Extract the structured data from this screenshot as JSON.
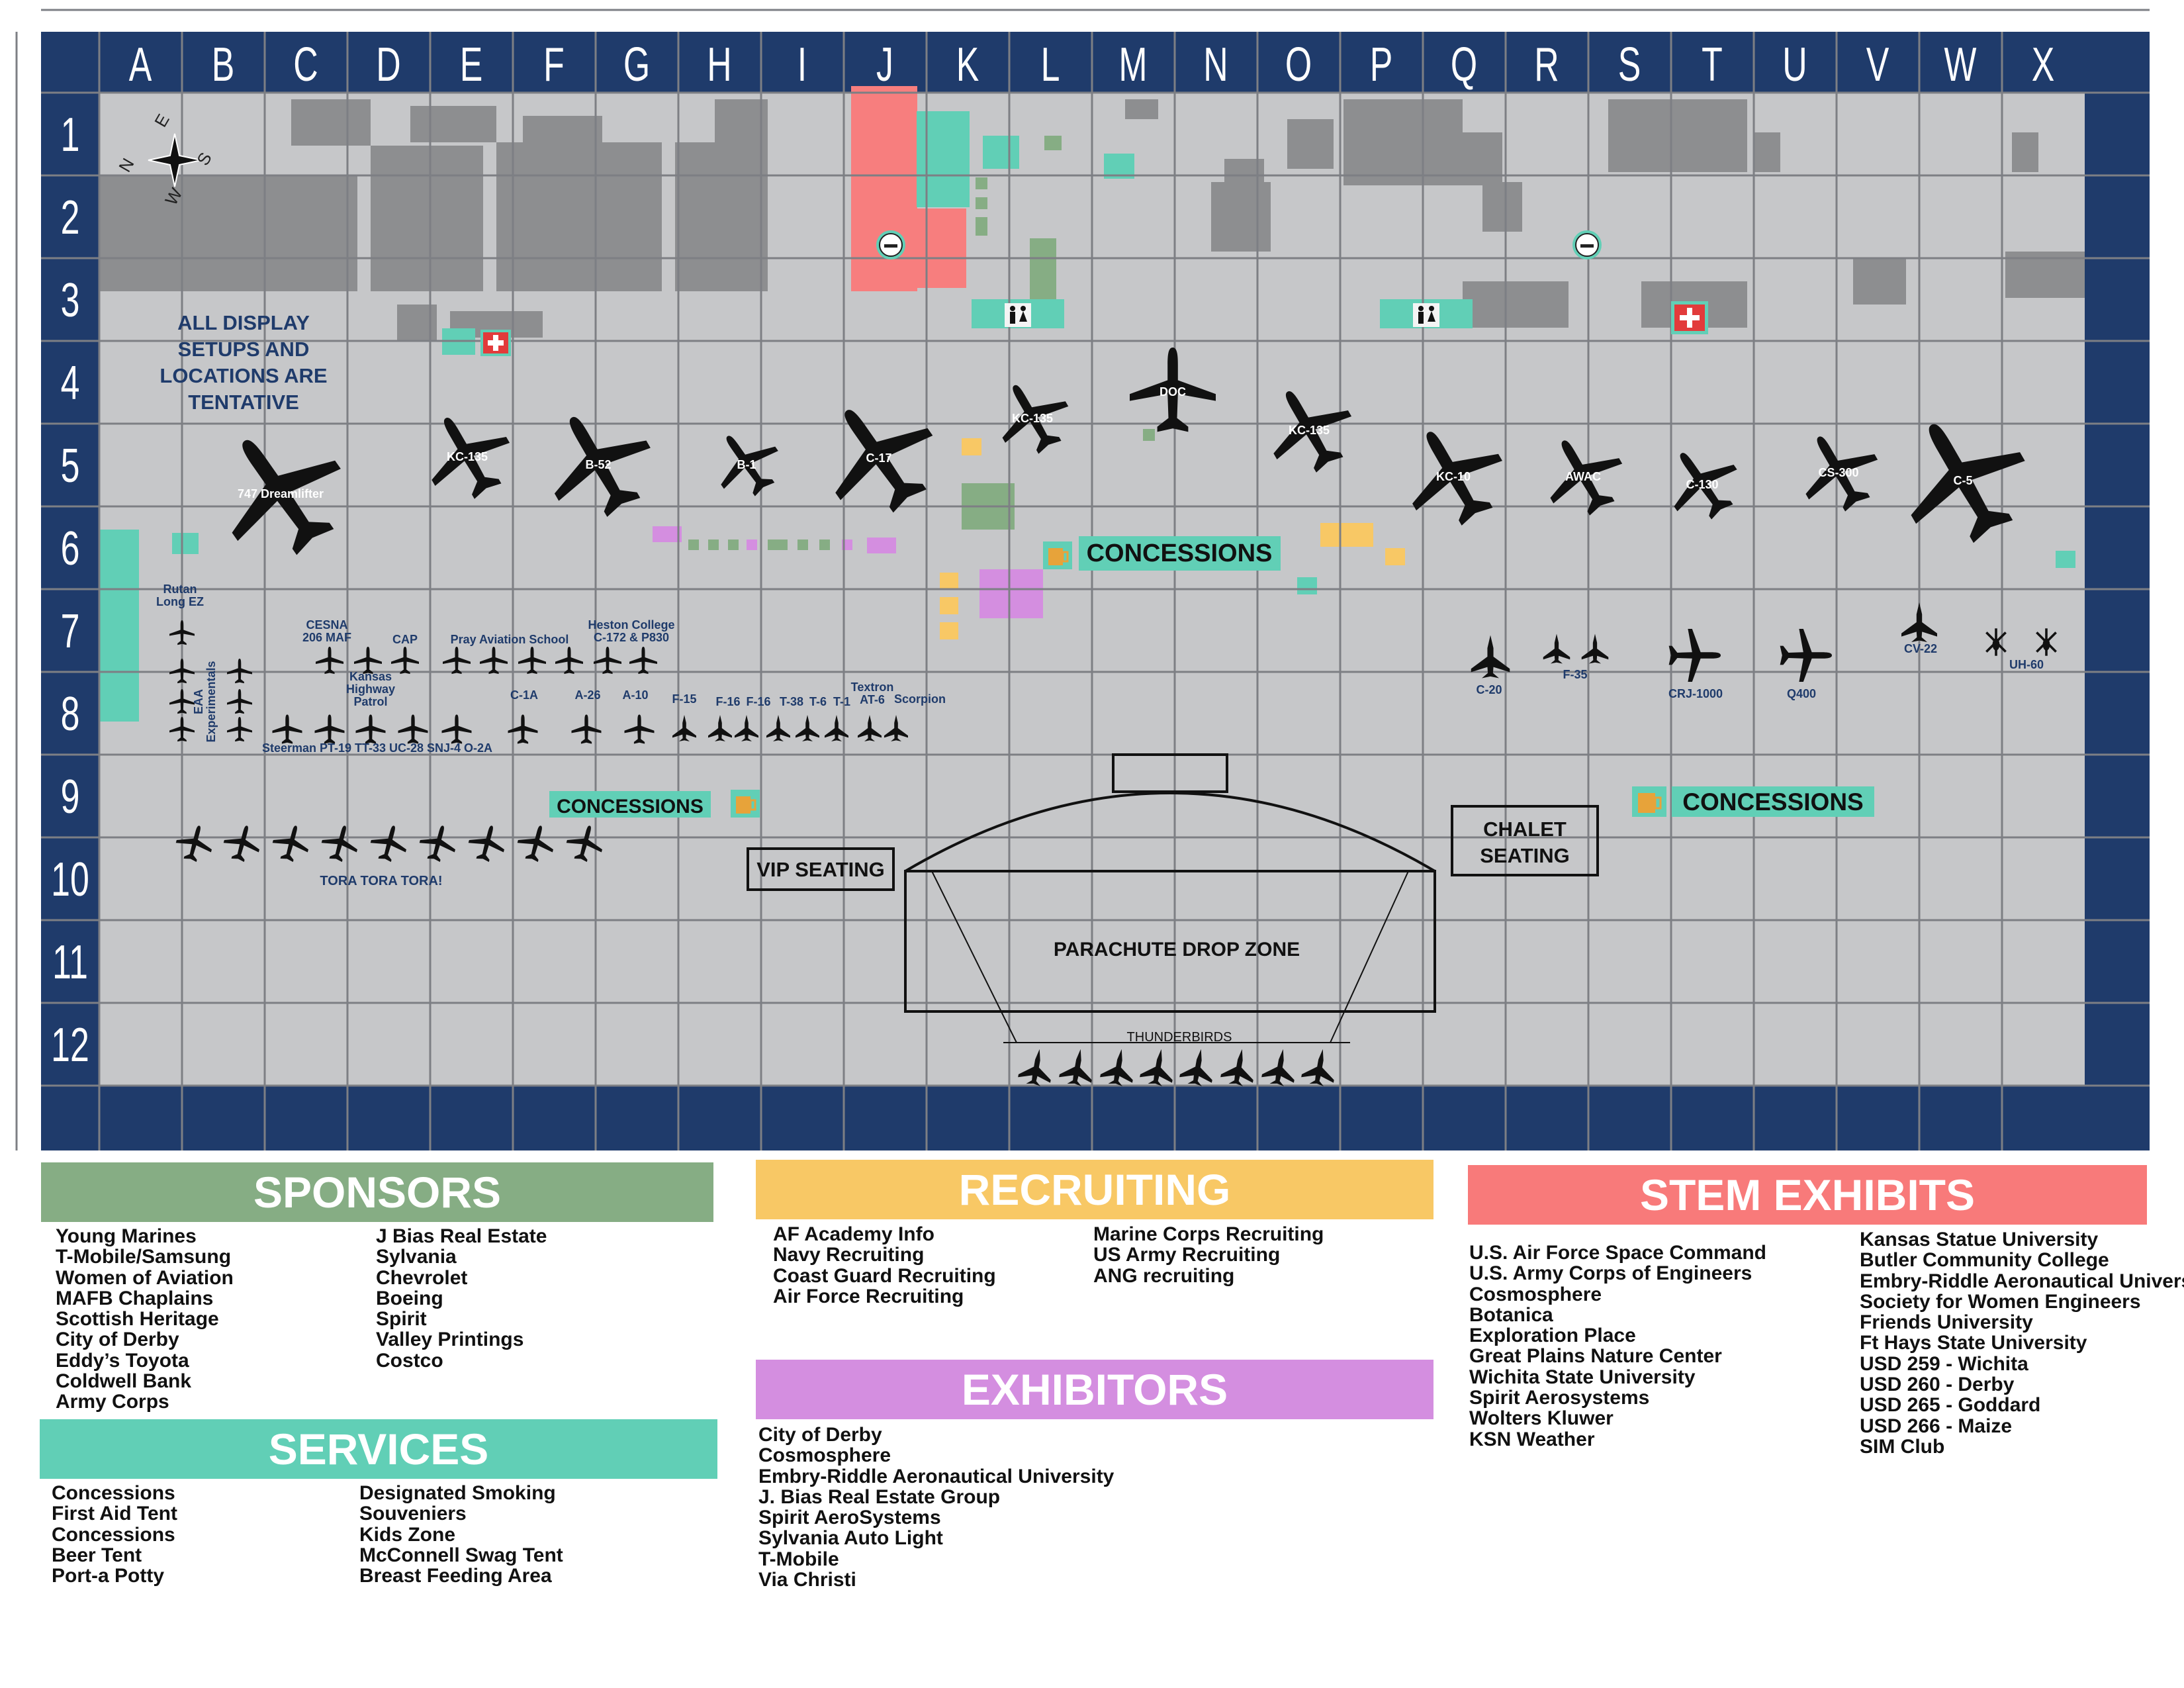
{
  "colors": {
    "navy": "#1f3b6b",
    "ground": "#c6c7c9",
    "grid": "#7d7f84",
    "building": "#8d8e90",
    "sponsors": "#86ad84",
    "services": "#61cfb6",
    "recruiting": "#f8c865",
    "exhibitors": "#d48ee0",
    "stem": "#f87a7a",
    "coral": "#f77e7e",
    "teal": "#61cfb6",
    "green": "#86ad84",
    "yellow": "#f8c865",
    "violet": "#d48ee0"
  },
  "map": {
    "columns": [
      "A",
      "B",
      "C",
      "D",
      "E",
      "F",
      "G",
      "H",
      "I",
      "J",
      "K",
      "L",
      "M",
      "N",
      "O",
      "P",
      "Q",
      "R",
      "S",
      "T",
      "U",
      "V",
      "W",
      "X"
    ],
    "rows": [
      "1",
      "2",
      "3",
      "4",
      "5",
      "6",
      "7",
      "8",
      "9",
      "10",
      "11",
      "12"
    ],
    "compass": {
      "n": "N",
      "s": "S",
      "e": "E",
      "w": "W"
    },
    "tentative_note": [
      "ALL DISPLAY",
      "SETUPS AND",
      "LOCATIONS ARE",
      "TENTATIVE"
    ],
    "concessions_label": "CONCESSIONS",
    "vip_label": "VIP SEATING",
    "chalet_label": [
      "CHALET",
      "SEATING"
    ],
    "drop_zone_label": "PARACHUTE DROP ZONE",
    "thunderbirds_label": "THUNDERBIRDS",
    "tora_label": "TORA TORA TORA!",
    "icons": {
      "first_aid": "first-aid-cross-icon",
      "restroom": "restroom-icon",
      "smoking": "smoking-area-icon",
      "beer": "beer-mug-icon",
      "compass": "compass-rose-icon",
      "aircraft": "aircraft-silhouette-icon"
    }
  },
  "aircraft": [
    {
      "id": "747",
      "label": "747 Dreamlifter"
    },
    {
      "id": "kc135a",
      "label": "KC-135"
    },
    {
      "id": "b52",
      "label": "B-52"
    },
    {
      "id": "b1",
      "label": "B-1"
    },
    {
      "id": "c17",
      "label": "C-17"
    },
    {
      "id": "kc135b",
      "label": "KC-135"
    },
    {
      "id": "doc",
      "label": "DOC"
    },
    {
      "id": "kc135c",
      "label": "KC-135"
    },
    {
      "id": "kc10",
      "label": "KC-10"
    },
    {
      "id": "awac",
      "label": "AWAC"
    },
    {
      "id": "c130",
      "label": "C-130"
    },
    {
      "id": "cs300",
      "label": "CS-300"
    },
    {
      "id": "c5",
      "label": "C-5"
    }
  ],
  "small_labels": [
    {
      "id": "rutan",
      "label": "Rutan\nLong EZ"
    },
    {
      "id": "eaa",
      "label": "EAA\nExperimentals"
    },
    {
      "id": "cesna",
      "label": "CESNA\n206 MAF"
    },
    {
      "id": "cap",
      "label": "CAP"
    },
    {
      "id": "pray",
      "label": "Pray Aviation School"
    },
    {
      "id": "heston",
      "label": "Heston College\nC-172 & P830"
    },
    {
      "id": "kansas",
      "label": "Kansas\nHighway\nPatrol"
    },
    {
      "id": "c1a",
      "label": "C-1A"
    },
    {
      "id": "a26",
      "label": "A-26"
    },
    {
      "id": "a10",
      "label": "A-10"
    },
    {
      "id": "f15",
      "label": "F-15"
    },
    {
      "id": "f16a",
      "label": "F-16"
    },
    {
      "id": "f16b",
      "label": "F-16"
    },
    {
      "id": "t38",
      "label": "T-38"
    },
    {
      "id": "t6",
      "label": "T-6"
    },
    {
      "id": "t1",
      "label": "T-1"
    },
    {
      "id": "textron",
      "label": "Textron\nAT-6"
    },
    {
      "id": "scorpion",
      "label": "Scorpion"
    },
    {
      "id": "steerman",
      "label": "Steerman PT-19 TT-33 UC-28 SNJ-4 O-2A"
    },
    {
      "id": "c20",
      "label": "C-20"
    },
    {
      "id": "f35",
      "label": "F-35"
    },
    {
      "id": "crj",
      "label": "CRJ-1000"
    },
    {
      "id": "q400",
      "label": "Q400"
    },
    {
      "id": "cv22",
      "label": "CV-22"
    },
    {
      "id": "uh60",
      "label": "UH-60"
    }
  ],
  "sponsors": {
    "title": "SPONSORS",
    "col1": [
      "Young Marines",
      "T-Mobile/Samsung",
      "Women of Aviation",
      "MAFB Chaplains",
      "Scottish Heritage",
      "City of Derby",
      "Eddy’s Toyota",
      "Coldwell Bank",
      "Army Corps"
    ],
    "col2": [
      "J Bias Real Estate",
      "Sylvania",
      "Chevrolet",
      "Boeing",
      "Spirit",
      "Valley Printings",
      "Costco"
    ]
  },
  "services": {
    "title": "SERVICES",
    "col1": [
      "Concessions",
      "First Aid Tent",
      "Concessions",
      "Beer Tent",
      "Port-a Potty"
    ],
    "col2": [
      "Designated Smoking",
      "Souveniers",
      "Kids Zone",
      "McConnell Swag Tent",
      "Breast Feeding Area"
    ]
  },
  "recruiting": {
    "title": "RECRUITING",
    "col1": [
      "AF Academy Info",
      "Navy Recruiting",
      "Coast Guard Recruiting",
      "Air Force Recruiting"
    ],
    "col2": [
      "Marine Corps Recruiting",
      "US Army Recruiting",
      "ANG recruiting"
    ]
  },
  "exhibitors": {
    "title": "EXHIBITORS",
    "items": [
      "City of Derby",
      "Cosmosphere",
      "Embry-Riddle Aeronautical University",
      "J. Bias Real Estate Group",
      "Spirit AeroSystems",
      "Sylvania Auto Light",
      "T-Mobile",
      "Via Christi"
    ]
  },
  "stem": {
    "title": "STEM EXHIBITS",
    "col1": [
      "U.S. Air Force Space Command",
      "U.S. Army Corps of Engineers",
      "Cosmosphere",
      "Botanica",
      "Exploration Place",
      "Great Plains Nature Center",
      "Wichita State University",
      "Spirit Aerosystems",
      "Wolters Kluwer",
      "KSN Weather"
    ],
    "col2": [
      "Kansas Statue University",
      "Butler Community College",
      "Embry-Riddle Aeronautical University",
      "Society for Women Engineers",
      "Friends University",
      "Ft Hays State University",
      "USD 259 - Wichita",
      "USD 260 - Derby",
      "USD 265 - Goddard",
      "USD 266 - Maize",
      "SIM Club"
    ]
  }
}
